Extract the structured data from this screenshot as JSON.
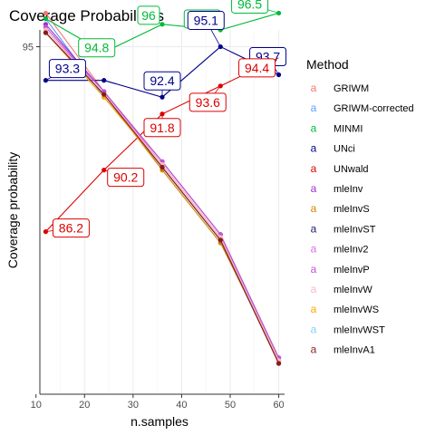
{
  "chart_data": {
    "type": "line",
    "title": "Coverage Probabilities",
    "xlabel": "n.samples",
    "ylabel": "Coverage probability",
    "xlim": [
      10.8,
      61.2
    ],
    "ylim": [
      88.8,
      95.3
    ],
    "x_ticks": [
      10,
      20,
      30,
      40,
      50,
      60
    ],
    "y_ticks": [
      95
    ],
    "grid": true,
    "legend_title": "Method",
    "legend_position": "right",
    "x": [
      12,
      24,
      36,
      48,
      60
    ],
    "series": [
      {
        "name": "GRIWM",
        "color": "#F8766D",
        "values": [
          95.6,
          94.2,
          92.9,
          91.6,
          89.4
        ]
      },
      {
        "name": "GRIWM-corrected",
        "color": "#619CFF",
        "values": [
          95.5,
          94.1,
          92.85,
          91.55,
          89.4
        ]
      },
      {
        "name": "MINMI",
        "color": "#00BA38",
        "values": [
          95.5,
          94.9,
          95.4,
          95.3,
          95.6
        ],
        "labels": [
          "",
          "94.8",
          "96",
          "95.8",
          "96.5"
        ]
      },
      {
        "name": "UNci",
        "color": "#00008B",
        "values": [
          94.4,
          94.4,
          94.1,
          95.0,
          94.5
        ],
        "labels": [
          "93.3",
          "",
          "92.4",
          "95.1",
          "93.7"
        ]
      },
      {
        "name": "UNwald",
        "color": "#DD0000",
        "values": [
          91.7,
          92.8,
          93.8,
          94.3,
          94.8
        ],
        "labels": [
          "86.2",
          "90.2",
          "91.8",
          "93.6",
          "94.4"
        ]
      },
      {
        "name": "mleInv",
        "color": "#9932CC",
        "values": [
          95.4,
          94.2,
          92.95,
          91.65,
          89.45
        ]
      },
      {
        "name": "mleInvS",
        "color": "#CD8500",
        "values": [
          95.25,
          94.15,
          92.8,
          91.5,
          89.4
        ]
      },
      {
        "name": "mleInvST",
        "color": "#191970",
        "values": [
          95.25,
          94.15,
          92.85,
          91.55,
          89.35
        ]
      },
      {
        "name": "mleInv2",
        "color": "#DA70D6",
        "values": [
          95.3,
          94.2,
          92.9,
          91.6,
          89.45
        ]
      },
      {
        "name": "mleInvP",
        "color": "#BA55D3",
        "values": [
          95.35,
          94.2,
          92.95,
          91.65,
          89.45
        ]
      },
      {
        "name": "mleInvW",
        "color": "#FFB6C1",
        "values": [
          95.3,
          94.15,
          92.9,
          91.6,
          89.4
        ]
      },
      {
        "name": "mleInvWS",
        "color": "#FFA500",
        "values": [
          95.25,
          94.1,
          92.85,
          91.55,
          89.35
        ]
      },
      {
        "name": "mleInvWST",
        "color": "#87CEFA",
        "values": [
          95.25,
          94.15,
          92.85,
          91.55,
          89.35
        ]
      },
      {
        "name": "mleInvA1",
        "color": "#8B1A1A",
        "values": [
          95.25,
          94.15,
          92.85,
          91.55,
          89.35
        ]
      }
    ]
  }
}
